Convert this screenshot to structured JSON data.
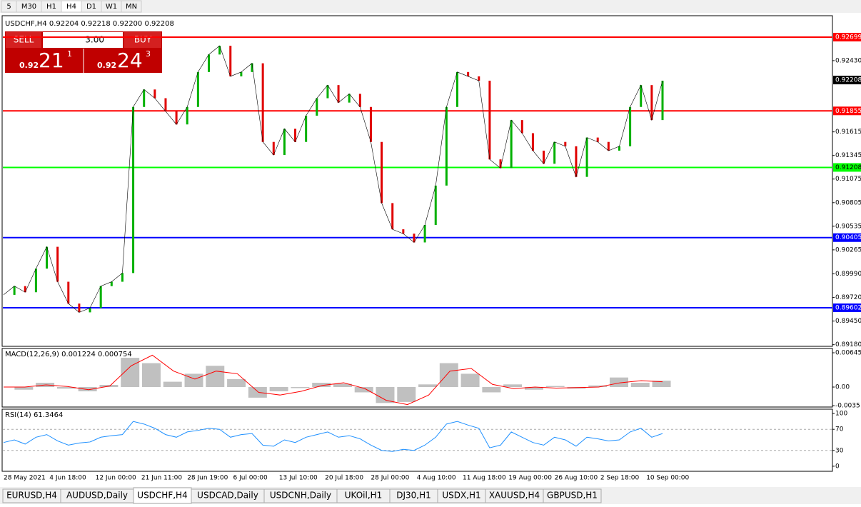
{
  "toolbar": [
    "5",
    "M30",
    "H1",
    "H4",
    "D1",
    "W1",
    "MN"
  ],
  "trade_panel": {
    "sell": "SELL",
    "lots": "3.00",
    "buy": "BUY",
    "sell_big": "0.92",
    "sell_pips": "21",
    "sell_frac": "1",
    "buy_big": "0.92",
    "buy_pips": "24",
    "buy_frac": "3"
  },
  "chart_data": [
    {
      "type": "line",
      "title": "USDCHF,H4  0.92204 0.92218 0.92200 0.92208",
      "color": "#000000",
      "values": [
        0.8975,
        0.8985,
        0.8978,
        0.9005,
        0.903,
        0.899,
        0.8965,
        0.8955,
        0.896,
        0.8985,
        0.899,
        0.9,
        0.919,
        0.921,
        0.92,
        0.9185,
        0.917,
        0.919,
        0.923,
        0.925,
        0.926,
        0.9225,
        0.923,
        0.924,
        0.915,
        0.9135,
        0.9165,
        0.915,
        0.918,
        0.92,
        0.9215,
        0.9195,
        0.9205,
        0.919,
        0.915,
        0.908,
        0.905,
        0.9045,
        0.9035,
        0.9055,
        0.91,
        0.919,
        0.923,
        0.9225,
        0.922,
        0.913,
        0.912,
        0.9175,
        0.916,
        0.914,
        0.9125,
        0.915,
        0.9145,
        0.911,
        0.9155,
        0.915,
        0.914,
        0.9145,
        0.919,
        0.9215,
        0.9175,
        0.922
      ],
      "ylim": [
        0.89161,
        0.92944
      ],
      "yticks": [
        {
          "value": 0.9243,
          "label": "0.92430"
        },
        0.91615,
        0.91345,
        0.91075,
        0.90805,
        0.90535,
        0.90265,
        {
          "value": 0.8999,
          "label": "0.89990"
        },
        {
          "value": 0.8972,
          "label": "0.89720"
        },
        {
          "value": 0.8945,
          "label": "0.89450"
        },
        {
          "value": 0.8918,
          "label": "0.89180"
        }
      ],
      "levels": [
        {
          "value": 0.92699,
          "color": "#ff0000"
        },
        {
          "value": 0.91855,
          "color": "#ff0000"
        },
        {
          "value": 0.91208,
          "color": "#00ff00"
        },
        {
          "value": 0.90405,
          "color": "#0000ff"
        },
        {
          "value": 0.89602,
          "color": "#0000ff"
        }
      ],
      "current": 0.92208,
      "time_labels": [
        "28 May 2021",
        "4 Jun 18:00",
        "12 Jun 00:00",
        "21 Jun 11:00",
        "28 Jun 19:00",
        "6 Jul 00:00",
        "13 Jul 10:00",
        "20 Jul 18:00",
        "28 Jul 00:00",
        "4 Aug 10:00",
        "11 Aug 18:00",
        "19 Aug 00:00",
        "26 Aug 10:00",
        "2 Sep 18:00",
        "10 Sep 00:00"
      ]
    },
    {
      "type": "macd",
      "title": "MACD(12,26,9) 0.001224 0.000754",
      "series": [
        {
          "name": "MACD",
          "color": "#c0c0c0",
          "values": [
            0,
            -0.0005,
            0.0008,
            -0.0003,
            -0.0008,
            0.0004,
            0.0055,
            0.0045,
            0.001,
            0.0025,
            0.004,
            0.0015,
            -0.002,
            -0.0008,
            -0.0002,
            0.0008,
            0.0006,
            -0.001,
            -0.003,
            -0.0028,
            0.0005,
            0.0045,
            0.0025,
            -0.001,
            0.0005,
            -0.0005,
            0.0002,
            -0.0003,
            0.0003,
            0.0018,
            0.0008,
            0.0012
          ]
        },
        {
          "name": "Signal",
          "color": "#ff0000",
          "values": [
            0,
            0,
            0.0004,
            0.0001,
            -0.0005,
            0.0002,
            0.004,
            0.006,
            0.003,
            0.0015,
            0.003,
            0.0025,
            -0.001,
            -0.0015,
            -0.0008,
            0.0003,
            0.0008,
            -0.0003,
            -0.0025,
            -0.0033,
            -0.0015,
            0.003,
            0.0035,
            0.0005,
            -0.0003,
            0,
            -0.0002,
            -0.0001,
            0,
            0.0008,
            0.0012,
            0.001
          ]
        }
      ],
      "ylim": [
        -0.00376,
        0.00726
      ],
      "yticks": [
        0.006451,
        {
          "value": 0,
          "label": "0.00"
        },
        {
          "value": -0.0035,
          "label": "-0.0035"
        }
      ]
    },
    {
      "type": "rsi",
      "title": "RSI(14) 61.3464",
      "color": "#1e90ff",
      "values": [
        45,
        50,
        42,
        55,
        60,
        48,
        40,
        44,
        46,
        55,
        58,
        60,
        85,
        80,
        72,
        60,
        55,
        65,
        68,
        72,
        70,
        55,
        60,
        62,
        40,
        38,
        50,
        45,
        55,
        60,
        65,
        55,
        58,
        52,
        40,
        30,
        28,
        32,
        30,
        40,
        55,
        80,
        85,
        78,
        72,
        35,
        40,
        65,
        55,
        45,
        40,
        55,
        50,
        38,
        55,
        52,
        48,
        50,
        65,
        72,
        55,
        62
      ],
      "ylim": [
        -9.6,
        108.2
      ],
      "yticks": [
        100,
        70,
        30,
        0
      ],
      "dashed": [
        70,
        30
      ]
    }
  ],
  "tabs": [
    "EURUSD,H4",
    "AUDUSD,Daily",
    "USDCHF,H4",
    "USDCAD,Daily",
    "USDCNH,Daily",
    "UKOil,H1",
    "DJ30,H1",
    "USDX,H1",
    "XAUUSD,H4",
    "GBPUSD,H1"
  ],
  "active_tab": 2
}
